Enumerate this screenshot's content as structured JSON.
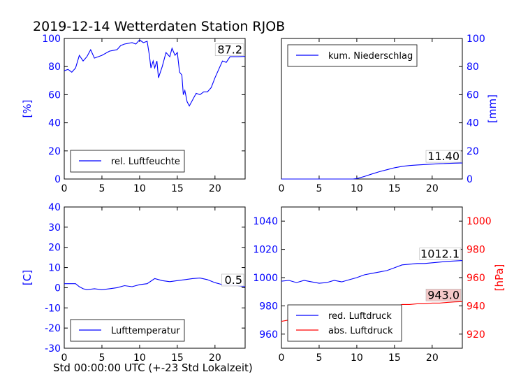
{
  "title": "2019-12-14 Wetterdaten Station RJOB",
  "footer": "Std 00:00:00 UTC (+-23 Std Lokalzeit)",
  "chart_data": [
    {
      "type": "line",
      "panel": "top-left",
      "ylabel": "[%]",
      "xlim": [
        0,
        24
      ],
      "ylim": [
        0,
        100
      ],
      "xticks": [
        "0",
        "5",
        "10",
        "15",
        "20"
      ],
      "yticks": [
        "0",
        "20",
        "40",
        "60",
        "80",
        "100"
      ],
      "legend": "bottom-left",
      "last_label": "87.2",
      "series": [
        {
          "name": "rel. Luftfeuchte",
          "color": "#0000ff",
          "x": [
            0,
            0.5,
            1,
            1.5,
            2,
            2.5,
            3,
            3.5,
            4,
            5,
            6,
            7,
            7.5,
            8,
            9,
            9.5,
            10,
            10.5,
            11,
            11.3,
            11.5,
            11.8,
            12,
            12.3,
            12.5,
            13,
            13.5,
            14,
            14.3,
            14.7,
            15,
            15.3,
            15.6,
            15.8,
            16,
            16.3,
            16.6,
            17,
            17.5,
            18,
            18.5,
            19,
            19.5,
            20,
            20.5,
            21,
            21.5,
            22,
            22.5,
            23,
            24
          ],
          "y": [
            77,
            78,
            76,
            79,
            88,
            84,
            87,
            92,
            86,
            88,
            91,
            92,
            95,
            96,
            97,
            96,
            99,
            97,
            98,
            88,
            79,
            84,
            79,
            84,
            72,
            80,
            90,
            87,
            93,
            88,
            90,
            76,
            74,
            60,
            63,
            55,
            52,
            56,
            61,
            60,
            62,
            62,
            65,
            72,
            78,
            84,
            83,
            87,
            87,
            87,
            87.2
          ]
        }
      ]
    },
    {
      "type": "line",
      "panel": "top-right",
      "ylabel": "[mm]",
      "xlim": [
        0,
        24
      ],
      "ylim": [
        0,
        100
      ],
      "xticks": [
        "0",
        "5",
        "10",
        "15",
        "20"
      ],
      "yticks": [
        "0",
        "20",
        "40",
        "60",
        "80",
        "100"
      ],
      "legend": "top-left",
      "last_label": "11.40",
      "series": [
        {
          "name": "kum. Niederschlag",
          "color": "#0000ff",
          "x": [
            0,
            9.5,
            10,
            11,
            12,
            13,
            14,
            15,
            16,
            17,
            18,
            19,
            20,
            21,
            22,
            23,
            24
          ],
          "y": [
            0,
            0,
            0.3,
            1.8,
            3.6,
            5.2,
            6.6,
            8,
            9,
            9.6,
            10,
            10.3,
            10.6,
            10.9,
            11.1,
            11.3,
            11.4
          ]
        }
      ]
    },
    {
      "type": "line",
      "panel": "bottom-left",
      "ylabel": "[C]",
      "xlim": [
        0,
        24
      ],
      "ylim": [
        -30,
        40
      ],
      "xticks": [
        "0",
        "5",
        "10",
        "15",
        "20"
      ],
      "yticks": [
        "-30",
        "-20",
        "-10",
        "0",
        "10",
        "20",
        "30",
        "40"
      ],
      "legend": "bottom-left",
      "last_label": "0.5",
      "series": [
        {
          "name": "Lufttemperatur",
          "color": "#0000ff",
          "x": [
            0,
            1,
            1.5,
            2,
            2.5,
            3,
            4,
            5,
            6,
            7,
            8,
            9,
            10,
            11,
            12,
            13,
            14,
            15,
            16,
            17,
            18,
            19,
            20,
            21,
            22,
            23,
            24
          ],
          "y": [
            2,
            2,
            2,
            0.5,
            -0.5,
            -1,
            -0.5,
            -1,
            -0.5,
            0,
            1,
            0.5,
            1.5,
            2,
            4.5,
            3.5,
            3,
            3.5,
            4,
            4.5,
            4.8,
            4,
            2.5,
            1.5,
            1.5,
            1,
            0.5
          ]
        }
      ]
    },
    {
      "type": "line",
      "panel": "bottom-right",
      "ylabel": "[hPa]",
      "xlim": [
        0,
        24
      ],
      "ylim_left": [
        950,
        1050
      ],
      "ylim_right": [
        910,
        1010
      ],
      "xticks": [
        "0",
        "5",
        "10",
        "15",
        "20"
      ],
      "yticks_left": [
        "960",
        "980",
        "1000",
        "1020",
        "1040"
      ],
      "yticks_right": [
        "920",
        "940",
        "960",
        "980",
        "1000"
      ],
      "legend": "bottom-left",
      "series": [
        {
          "name": "red. Luftdruck",
          "color": "#0000ff",
          "axis": "left",
          "last_label": "1012.1",
          "x": [
            0,
            1,
            2,
            3,
            4,
            5,
            6,
            7,
            8,
            9,
            10,
            11,
            12,
            13,
            14,
            15,
            16,
            17,
            18,
            19,
            20,
            21,
            22,
            23,
            24
          ],
          "y": [
            997.5,
            998,
            996.5,
            998,
            997,
            996,
            996.5,
            998,
            997,
            998.5,
            1000,
            1002,
            1003,
            1004,
            1005,
            1007,
            1009,
            1009.5,
            1010,
            1010,
            1010.5,
            1011,
            1011.5,
            1011.8,
            1012.1
          ]
        },
        {
          "name": "abs. Luftdruck",
          "color": "#ff0000",
          "axis": "right",
          "last_label": "943.0",
          "x": [
            0,
            1,
            2,
            3,
            4,
            5,
            6,
            7,
            8,
            9,
            10,
            11,
            12,
            13,
            14,
            15,
            16,
            17,
            18,
            19,
            20,
            21,
            22,
            23,
            24
          ],
          "y": [
            929,
            930,
            929,
            929.5,
            929,
            928,
            929,
            930,
            929,
            931,
            932,
            933.5,
            934.5,
            935.5,
            936.5,
            939,
            941,
            941,
            941.5,
            941.5,
            942,
            942,
            942.5,
            942.8,
            943
          ]
        }
      ]
    }
  ]
}
